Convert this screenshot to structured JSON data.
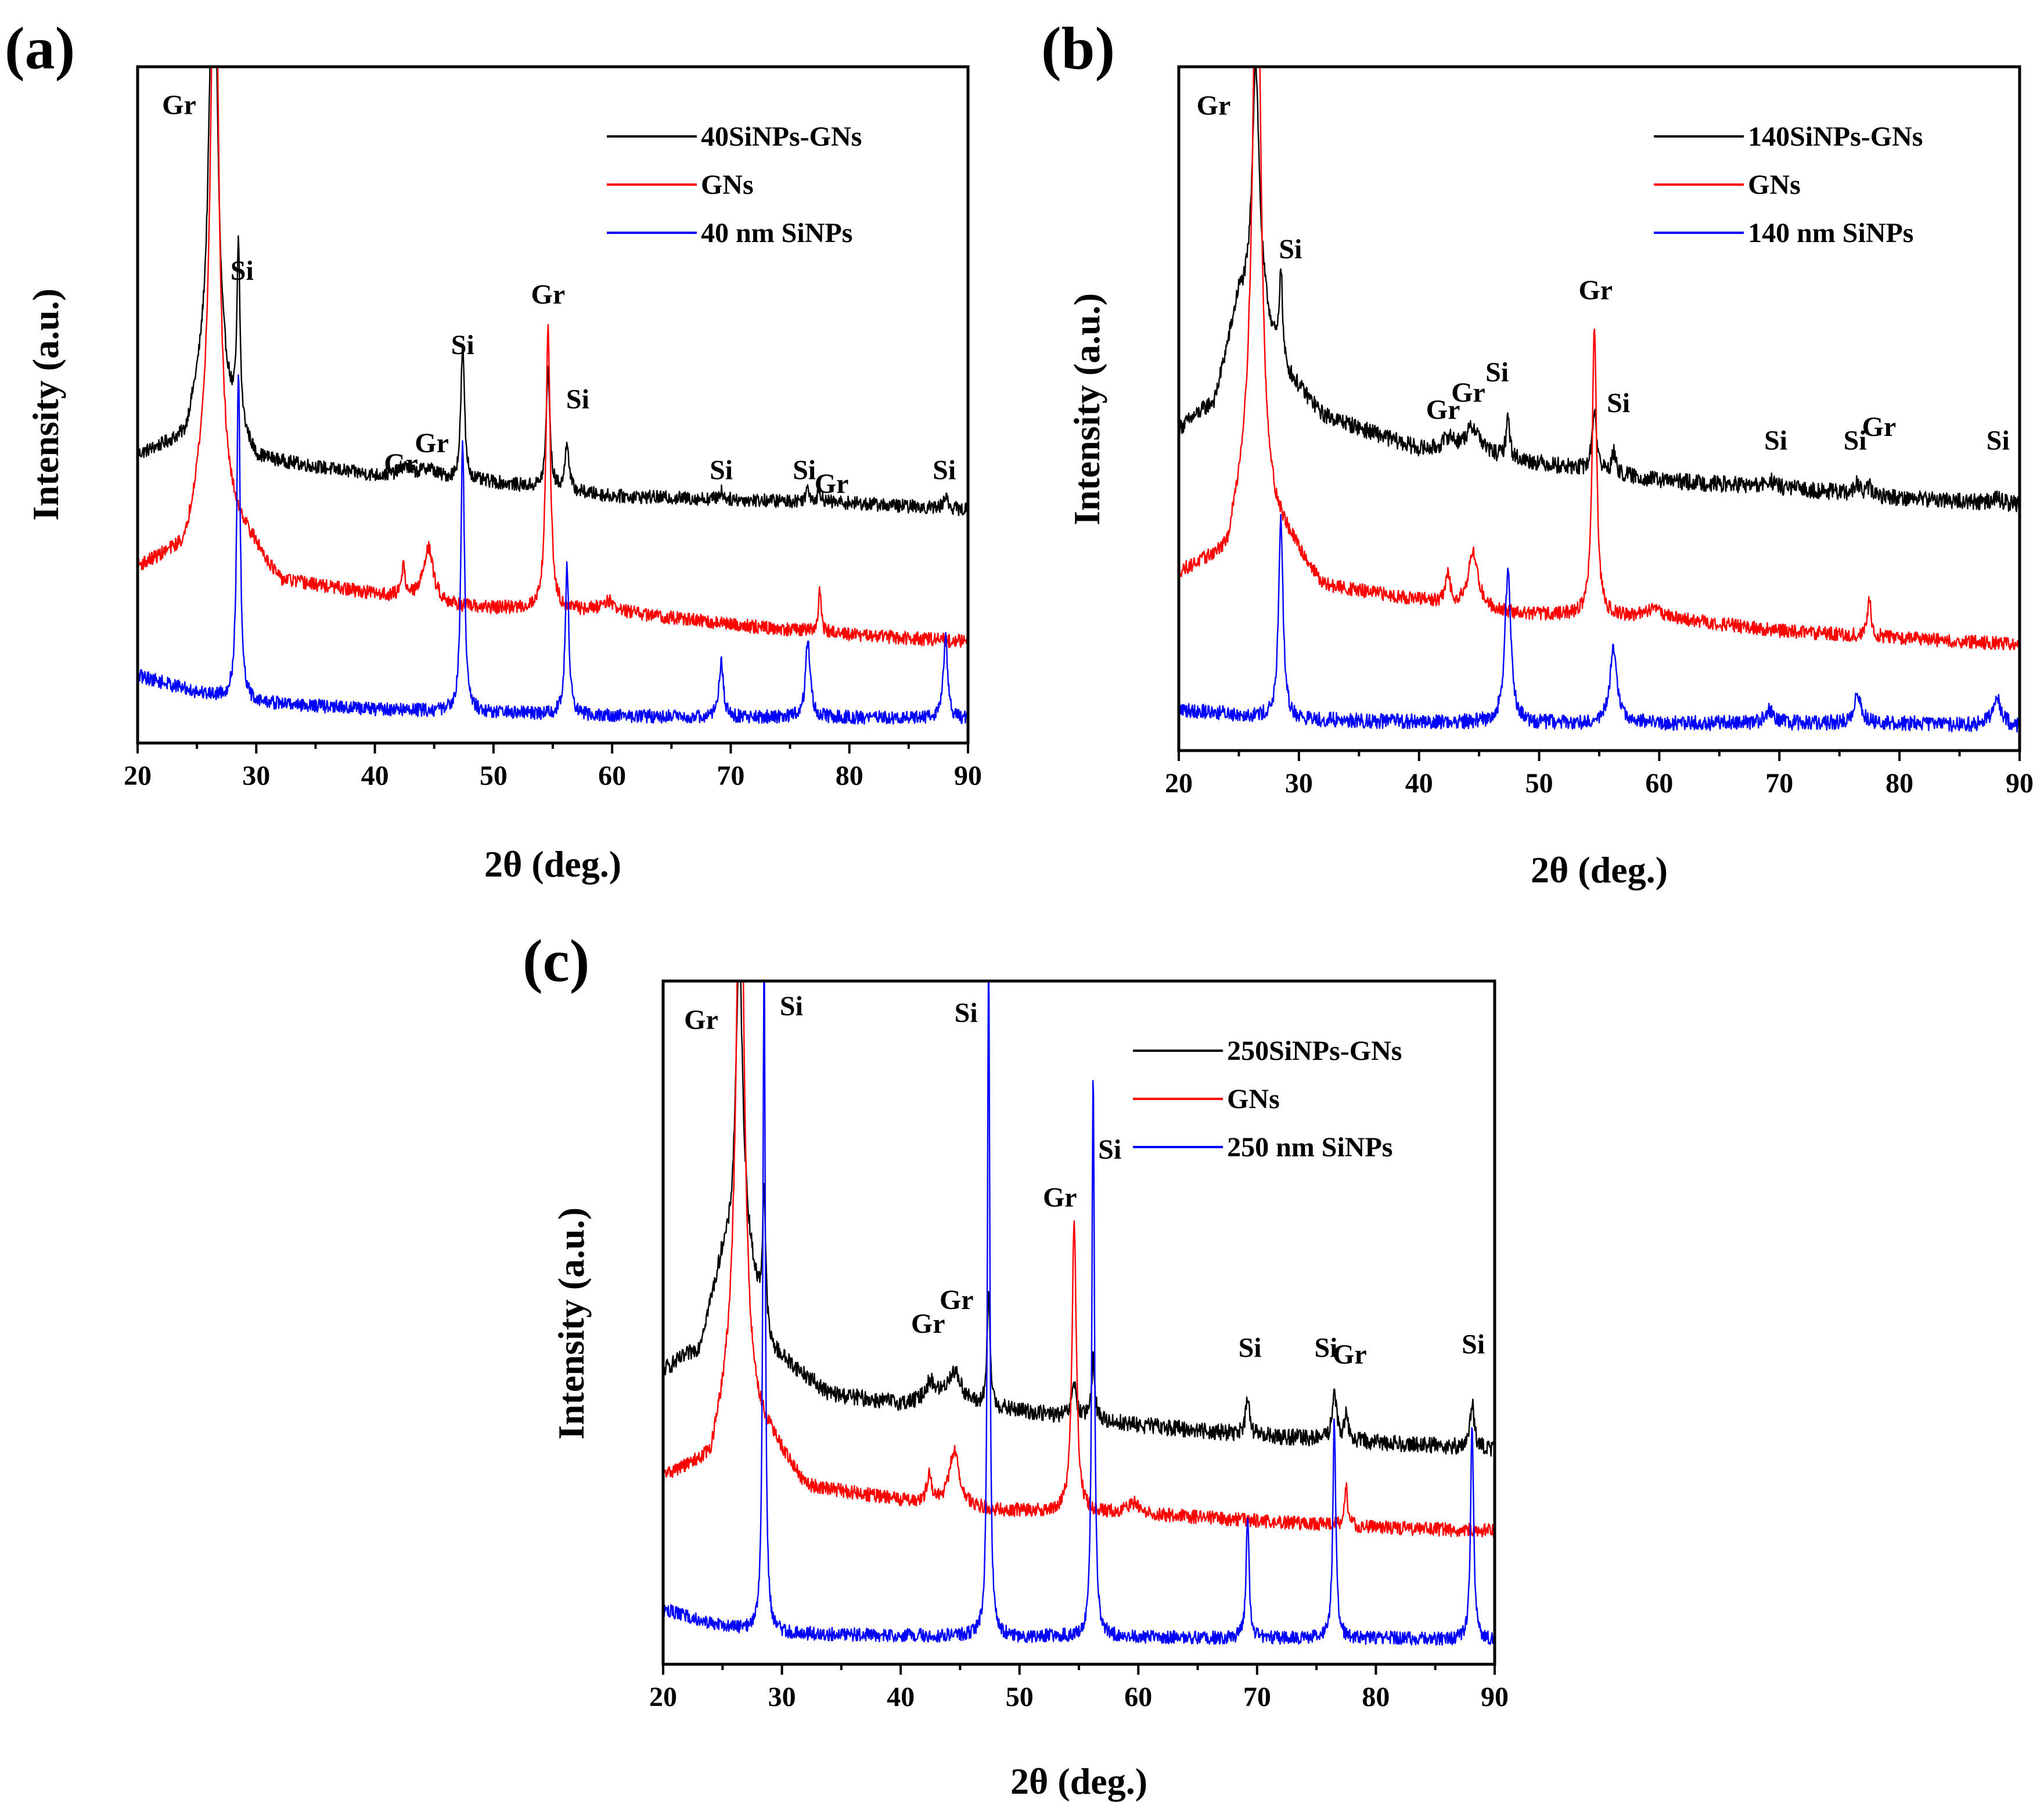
{
  "figure": {
    "colors": {
      "black": "#000000",
      "red": "#ff0000",
      "blue": "#0000ff"
    }
  },
  "chart_data": [
    {
      "type": "line",
      "panel_label": "(a)",
      "xlabel": "2θ (deg.)",
      "ylabel": "Intensity (a.u.)",
      "xlim": [
        20,
        90
      ],
      "xticks": [
        20,
        30,
        40,
        50,
        60,
        70,
        80,
        90
      ],
      "ylim": [
        0,
        10
      ],
      "legend": {
        "placement": "top-right"
      },
      "series": [
        {
          "name": "40SiNPs-GNs",
          "color": "#000000",
          "baseline": [
            [
              20,
              4.25
            ],
            [
              24,
              4.5
            ],
            [
              26,
              5.8
            ],
            [
              28,
              4.8
            ],
            [
              30,
              4.2
            ],
            [
              40,
              3.95
            ],
            [
              50,
              3.85
            ],
            [
              60,
              3.65
            ],
            [
              70,
              3.6
            ],
            [
              80,
              3.55
            ],
            [
              90,
              3.45
            ]
          ],
          "peaks": [
            [
              26.4,
              7.5,
              0.35
            ],
            [
              28.5,
              2.6,
              0.15
            ],
            [
              42.5,
              0.15,
              0.6
            ],
            [
              44.5,
              0.15,
              0.8
            ],
            [
              47.4,
              2.0,
              0.18
            ],
            [
              54.6,
              1.8,
              0.18
            ],
            [
              56.2,
              0.75,
              0.18
            ],
            [
              69.2,
              0.12,
              0.2
            ],
            [
              76.5,
              0.2,
              0.2
            ],
            [
              77.5,
              0.15,
              0.2
            ],
            [
              88.1,
              0.2,
              0.2
            ]
          ],
          "noise": 0.1
        },
        {
          "name": "GNs",
          "color": "#ff0000",
          "baseline": [
            [
              20,
              2.6
            ],
            [
              24,
              2.9
            ],
            [
              26,
              4.5
            ],
            [
              28,
              3.4
            ],
            [
              32,
              2.4
            ],
            [
              40,
              2.2
            ],
            [
              48,
              2.0
            ],
            [
              60,
              1.95
            ],
            [
              70,
              1.75
            ],
            [
              80,
              1.6
            ],
            [
              90,
              1.5
            ]
          ],
          "peaks": [
            [
              26.5,
              9.0,
              0.35
            ],
            [
              42.4,
              0.45,
              0.2
            ],
            [
              44.5,
              0.8,
              0.5
            ],
            [
              54.6,
              4.2,
              0.22
            ],
            [
              59.6,
              0.15,
              0.6
            ],
            [
              77.5,
              0.6,
              0.15
            ]
          ],
          "noise": 0.1
        },
        {
          "name": "40 nm SiNPs",
          "color": "#0000ff",
          "baseline": [
            [
              20,
              1.0
            ],
            [
              25,
              0.75
            ],
            [
              30,
              0.6
            ],
            [
              40,
              0.5
            ],
            [
              50,
              0.45
            ],
            [
              60,
              0.4
            ],
            [
              70,
              0.38
            ],
            [
              80,
              0.38
            ],
            [
              90,
              0.35
            ]
          ],
          "peaks": [
            [
              28.5,
              4.8,
              0.17
            ],
            [
              47.4,
              4.0,
              0.18
            ],
            [
              56.2,
              2.2,
              0.18
            ],
            [
              69.2,
              0.8,
              0.22
            ],
            [
              76.5,
              1.2,
              0.22
            ],
            [
              88.1,
              1.2,
              0.22
            ]
          ],
          "noise": 0.1
        }
      ],
      "annotations": [
        {
          "text": "Gr",
          "x": 23.5,
          "y": 9.3
        },
        {
          "text": "Si",
          "x": 28.8,
          "y": 6.85
        },
        {
          "text": "Gr",
          "x": 42.2,
          "y": 4.0
        },
        {
          "text": "Gr",
          "x": 44.8,
          "y": 4.3
        },
        {
          "text": "Si",
          "x": 47.4,
          "y": 5.75
        },
        {
          "text": "Gr",
          "x": 54.6,
          "y": 6.5
        },
        {
          "text": "Si",
          "x": 57.1,
          "y": 4.95
        },
        {
          "text": "Si",
          "x": 69.2,
          "y": 3.9
        },
        {
          "text": "Si",
          "x": 76.2,
          "y": 3.9
        },
        {
          "text": "Gr",
          "x": 78.5,
          "y": 3.7
        },
        {
          "text": "Si",
          "x": 88.0,
          "y": 3.9
        }
      ]
    },
    {
      "type": "line",
      "panel_label": "(b)",
      "xlabel": "2θ (deg.)",
      "ylabel": "Intensity (a.u.)",
      "xlim": [
        20,
        90
      ],
      "xticks": [
        20,
        30,
        40,
        50,
        60,
        70,
        80,
        90
      ],
      "ylim": [
        0,
        10
      ],
      "legend": {
        "placement": "top-right"
      },
      "series": [
        {
          "name": "140SiNPs-GNs",
          "color": "#000000",
          "baseline": [
            [
              20,
              4.7
            ],
            [
              23,
              5.1
            ],
            [
              25,
              6.6
            ],
            [
              27,
              6.4
            ],
            [
              28.5,
              5.6
            ],
            [
              32,
              4.9
            ],
            [
              40,
              4.4
            ],
            [
              50,
              4.2
            ],
            [
              60,
              3.95
            ],
            [
              70,
              3.85
            ],
            [
              80,
              3.7
            ],
            [
              90,
              3.6
            ]
          ],
          "peaks": [
            [
              26.4,
              3.6,
              0.35
            ],
            [
              28.5,
              1.45,
              0.15
            ],
            [
              42.5,
              0.2,
              0.6
            ],
            [
              44.5,
              0.4,
              0.8
            ],
            [
              47.4,
              0.6,
              0.18
            ],
            [
              54.6,
              0.9,
              0.22
            ],
            [
              56.2,
              0.3,
              0.2
            ],
            [
              69.2,
              0.1,
              0.3
            ],
            [
              76.5,
              0.15,
              0.25
            ],
            [
              77.5,
              0.12,
              0.2
            ],
            [
              88.1,
              0.1,
              0.3
            ]
          ],
          "noise": 0.12
        },
        {
          "name": "GNs",
          "color": "#ff0000",
          "baseline": [
            [
              20,
              2.6
            ],
            [
              24,
              2.9
            ],
            [
              26,
              4.5
            ],
            [
              28,
              3.4
            ],
            [
              32,
              2.4
            ],
            [
              40,
              2.2
            ],
            [
              48,
              2.0
            ],
            [
              60,
              1.95
            ],
            [
              70,
              1.75
            ],
            [
              80,
              1.65
            ],
            [
              90,
              1.55
            ]
          ],
          "peaks": [
            [
              26.5,
              9.0,
              0.35
            ],
            [
              42.4,
              0.45,
              0.2
            ],
            [
              44.5,
              0.8,
              0.5
            ],
            [
              54.6,
              4.2,
              0.22
            ],
            [
              59.6,
              0.15,
              0.6
            ],
            [
              77.5,
              0.6,
              0.15
            ]
          ],
          "noise": 0.1
        },
        {
          "name": "140 nm SiNPs",
          "color": "#0000ff",
          "baseline": [
            [
              20,
              0.6
            ],
            [
              30,
              0.45
            ],
            [
              40,
              0.42
            ],
            [
              50,
              0.4
            ],
            [
              60,
              0.4
            ],
            [
              70,
              0.4
            ],
            [
              80,
              0.4
            ],
            [
              90,
              0.35
            ]
          ],
          "peaks": [
            [
              28.5,
              2.9,
              0.22
            ],
            [
              47.4,
              2.2,
              0.3
            ],
            [
              56.2,
              1.1,
              0.35
            ],
            [
              69.2,
              0.2,
              0.4
            ],
            [
              76.5,
              0.45,
              0.35
            ],
            [
              88.1,
              0.4,
              0.45
            ]
          ],
          "noise": 0.11
        }
      ],
      "annotations": [
        {
          "text": "Gr",
          "x": 22.9,
          "y": 9.3
        },
        {
          "text": "Si",
          "x": 29.3,
          "y": 7.2
        },
        {
          "text": "Gr",
          "x": 42.0,
          "y": 4.85
        },
        {
          "text": "Gr",
          "x": 44.1,
          "y": 5.1
        },
        {
          "text": "Si",
          "x": 46.5,
          "y": 5.4
        },
        {
          "text": "Gr",
          "x": 54.7,
          "y": 6.6
        },
        {
          "text": "Si",
          "x": 56.6,
          "y": 4.95
        },
        {
          "text": "Si",
          "x": 69.7,
          "y": 4.4
        },
        {
          "text": "Si",
          "x": 76.3,
          "y": 4.4
        },
        {
          "text": "Gr",
          "x": 78.3,
          "y": 4.6
        },
        {
          "text": "Si",
          "x": 88.2,
          "y": 4.4
        }
      ]
    },
    {
      "type": "line",
      "panel_label": "(c)",
      "xlabel": "2θ (deg.)",
      "ylabel": "Intensity (a.u.)",
      "xlim": [
        20,
        90
      ],
      "xticks": [
        20,
        30,
        40,
        50,
        60,
        70,
        80,
        90
      ],
      "ylim": [
        0,
        10
      ],
      "legend": {
        "placement": "top-right"
      },
      "series": [
        {
          "name": "250SiNPs-GNs",
          "color": "#000000",
          "baseline": [
            [
              20,
              4.3
            ],
            [
              23,
              4.6
            ],
            [
              25,
              5.9
            ],
            [
              27,
              6.0
            ],
            [
              29,
              4.6
            ],
            [
              34,
              3.95
            ],
            [
              40,
              3.8
            ],
            [
              50,
              3.7
            ],
            [
              60,
              3.5
            ],
            [
              70,
              3.35
            ],
            [
              80,
              3.25
            ],
            [
              90,
              3.15
            ]
          ],
          "peaks": [
            [
              26.4,
              4.5,
              0.35
            ],
            [
              28.5,
              2.0,
              0.15
            ],
            [
              42.5,
              0.3,
              0.6
            ],
            [
              44.5,
              0.5,
              0.8
            ],
            [
              47.4,
              1.6,
              0.16
            ],
            [
              54.6,
              0.5,
              0.22
            ],
            [
              56.2,
              0.9,
              0.16
            ],
            [
              69.2,
              0.5,
              0.2
            ],
            [
              76.5,
              0.75,
              0.2
            ],
            [
              77.5,
              0.35,
              0.2
            ],
            [
              88.1,
              0.65,
              0.2
            ]
          ],
          "noise": 0.12
        },
        {
          "name": "GNs",
          "color": "#ff0000",
          "baseline": [
            [
              20,
              2.75
            ],
            [
              24,
              3.0
            ],
            [
              26,
              4.5
            ],
            [
              28,
              3.6
            ],
            [
              32,
              2.6
            ],
            [
              40,
              2.4
            ],
            [
              48,
              2.25
            ],
            [
              60,
              2.2
            ],
            [
              70,
              2.1
            ],
            [
              80,
              2.0
            ],
            [
              90,
              1.95
            ]
          ],
          "peaks": [
            [
              26.5,
              9.0,
              0.35
            ],
            [
              42.4,
              0.45,
              0.2
            ],
            [
              44.5,
              0.8,
              0.5
            ],
            [
              54.6,
              4.3,
              0.22
            ],
            [
              59.6,
              0.15,
              0.6
            ],
            [
              77.5,
              0.6,
              0.15
            ]
          ],
          "noise": 0.1
        },
        {
          "name": "250 nm SiNPs",
          "color": "#0000ff",
          "baseline": [
            [
              20,
              0.8
            ],
            [
              25,
              0.55
            ],
            [
              30,
              0.45
            ],
            [
              40,
              0.42
            ],
            [
              50,
              0.4
            ],
            [
              60,
              0.4
            ],
            [
              70,
              0.38
            ],
            [
              80,
              0.38
            ],
            [
              90,
              0.35
            ]
          ],
          "peaks": [
            [
              28.5,
              10.0,
              0.12
            ],
            [
              47.4,
              10.0,
              0.12
            ],
            [
              56.2,
              8.3,
              0.13
            ],
            [
              69.2,
              1.8,
              0.15
            ],
            [
              76.5,
              3.2,
              0.15
            ],
            [
              88.1,
              3.2,
              0.15
            ]
          ],
          "noise": 0.1
        }
      ],
      "annotations": [
        {
          "text": "Gr",
          "x": 23.2,
          "y": 9.3
        },
        {
          "text": "Si",
          "x": 30.8,
          "y": 9.5
        },
        {
          "text": "Si",
          "x": 45.5,
          "y": 9.4
        },
        {
          "text": "Gr",
          "x": 53.4,
          "y": 6.7
        },
        {
          "text": "Si",
          "x": 57.6,
          "y": 7.4
        },
        {
          "text": "Gr",
          "x": 42.3,
          "y": 4.85
        },
        {
          "text": "Gr",
          "x": 44.7,
          "y": 5.2
        },
        {
          "text": "Si",
          "x": 69.4,
          "y": 4.5
        },
        {
          "text": "Si",
          "x": 75.8,
          "y": 4.5
        },
        {
          "text": "Gr",
          "x": 77.8,
          "y": 4.4
        },
        {
          "text": "Si",
          "x": 88.2,
          "y": 4.55
        }
      ]
    }
  ]
}
